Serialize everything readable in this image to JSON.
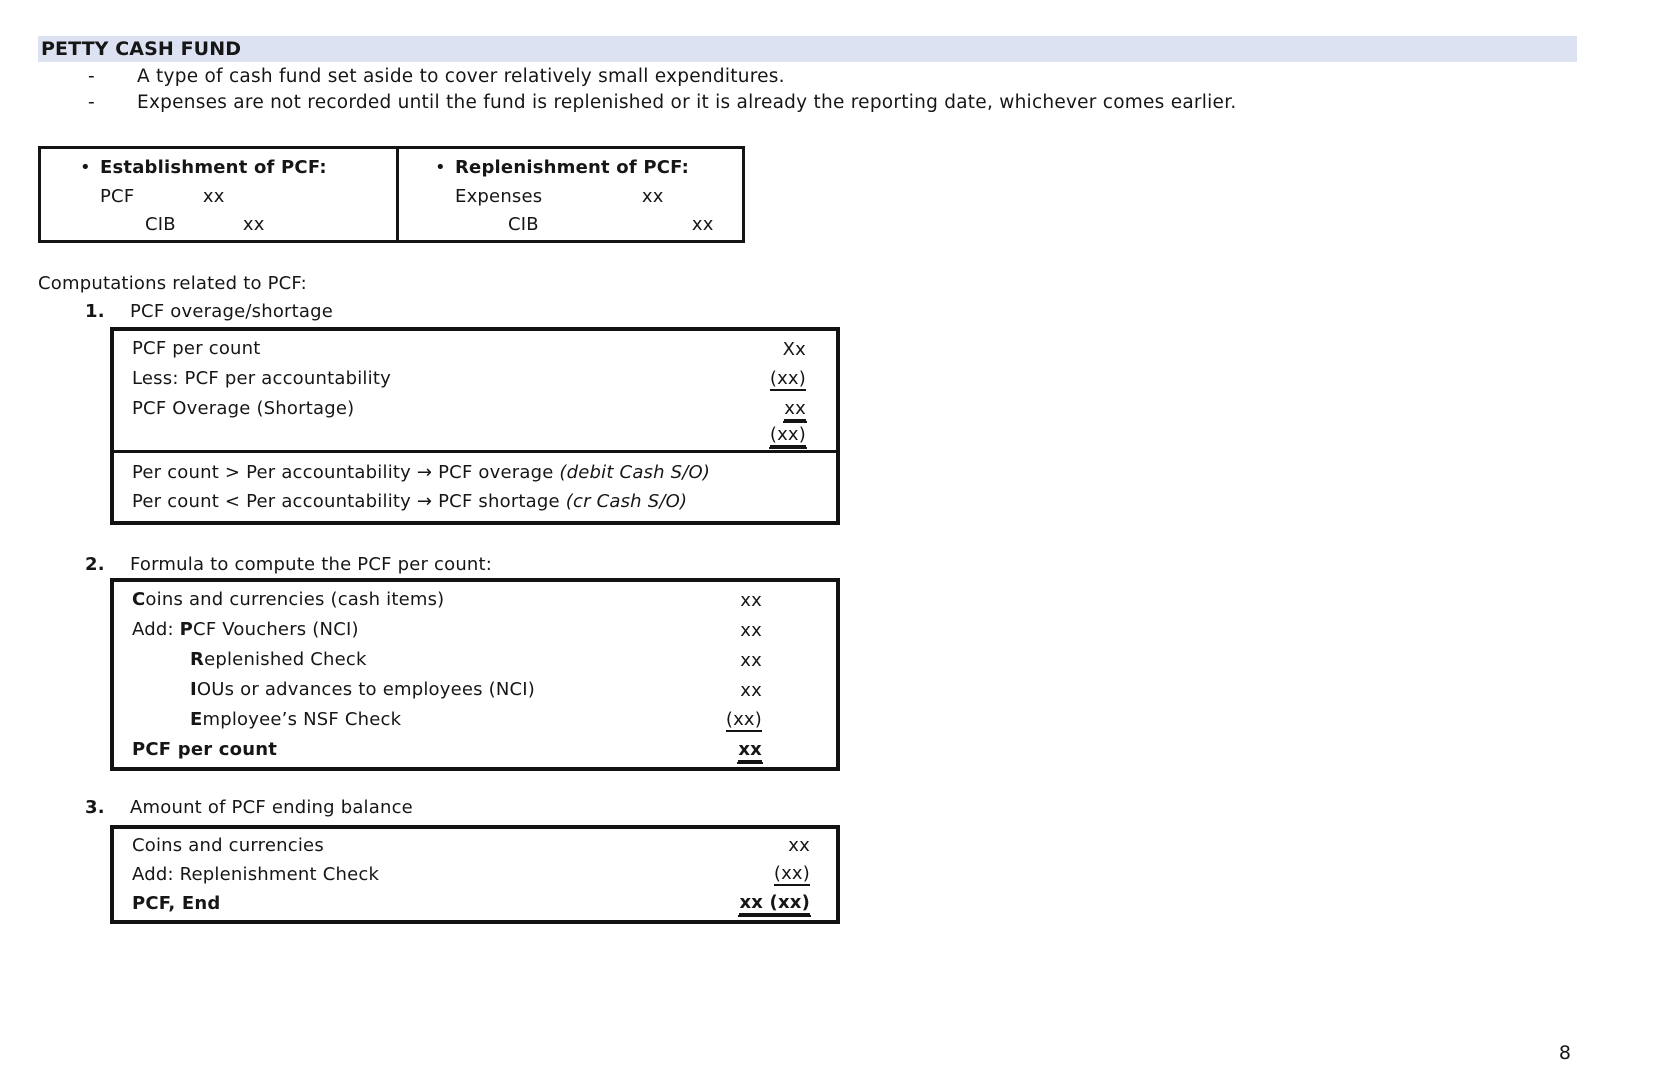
{
  "glyphs": {
    "dash": "-",
    "bullet": "•"
  },
  "colors": {
    "title_highlight": "#dce2f2",
    "border": "#141414"
  },
  "title": "PETTY CASH FUND",
  "bullets": [
    "A type of cash fund set aside to cover relatively small expenditures.",
    "Expenses are not recorded until the fund is replenished or it is already the reporting date, whichever comes earlier."
  ],
  "journal": {
    "establishment": {
      "heading": "Establishment of PCF:",
      "debit_account": "PCF",
      "debit_amount": "xx",
      "credit_account": "CIB",
      "credit_amount": "xx"
    },
    "replenishment": {
      "heading": "Replenishment of PCF:",
      "debit_account": "Expenses",
      "debit_amount": "xx",
      "credit_account": "CIB",
      "credit_amount": "xx"
    }
  },
  "computations": {
    "heading": "Computations related to PCF:",
    "items": [
      {
        "number": "1.",
        "title": "PCF overage/shortage"
      },
      {
        "number": "2.",
        "title": "Formula to compute the PCF per count:"
      },
      {
        "number": "3.",
        "title": "Amount of PCF ending balance"
      }
    ]
  },
  "table1": {
    "rows": [
      {
        "label": "PCF per count",
        "value": "Xx"
      },
      {
        "label": "Less: PCF per accountability",
        "value": "(xx)"
      },
      {
        "label": "PCF Overage (Shortage)",
        "value": "xx"
      },
      {
        "label": "",
        "value": "(xx)"
      }
    ],
    "notes": [
      {
        "text": "Per count > Per accountability → PCF overage ",
        "italic": "(debit Cash S/O)"
      },
      {
        "text": "Per count < Per accountability → PCF shortage ",
        "italic": "(cr Cash S/O)"
      }
    ]
  },
  "table2": {
    "rows": [
      {
        "lead": "C",
        "label": "oins and currencies (cash items)",
        "value": "xx"
      },
      {
        "prefix": "Add: ",
        "lead": "P",
        "label": "CF Vouchers (NCI)",
        "value": "xx"
      },
      {
        "lead": "R",
        "label": "eplenished Check",
        "value": "xx"
      },
      {
        "lead": "I",
        "label": "OUs or advances to employees (NCI)",
        "value": "xx"
      },
      {
        "lead": "E",
        "label": "mployee’s NSF Check",
        "value": "(xx)"
      },
      {
        "label": "PCF per count",
        "value": "xx"
      }
    ]
  },
  "table3": {
    "rows": [
      {
        "label": "Coins and currencies",
        "value": "xx"
      },
      {
        "label": "Add: Replenishment Check",
        "value": "(xx)"
      },
      {
        "label": "PCF, End",
        "value": "xx (xx)"
      }
    ]
  },
  "page_number": "8"
}
